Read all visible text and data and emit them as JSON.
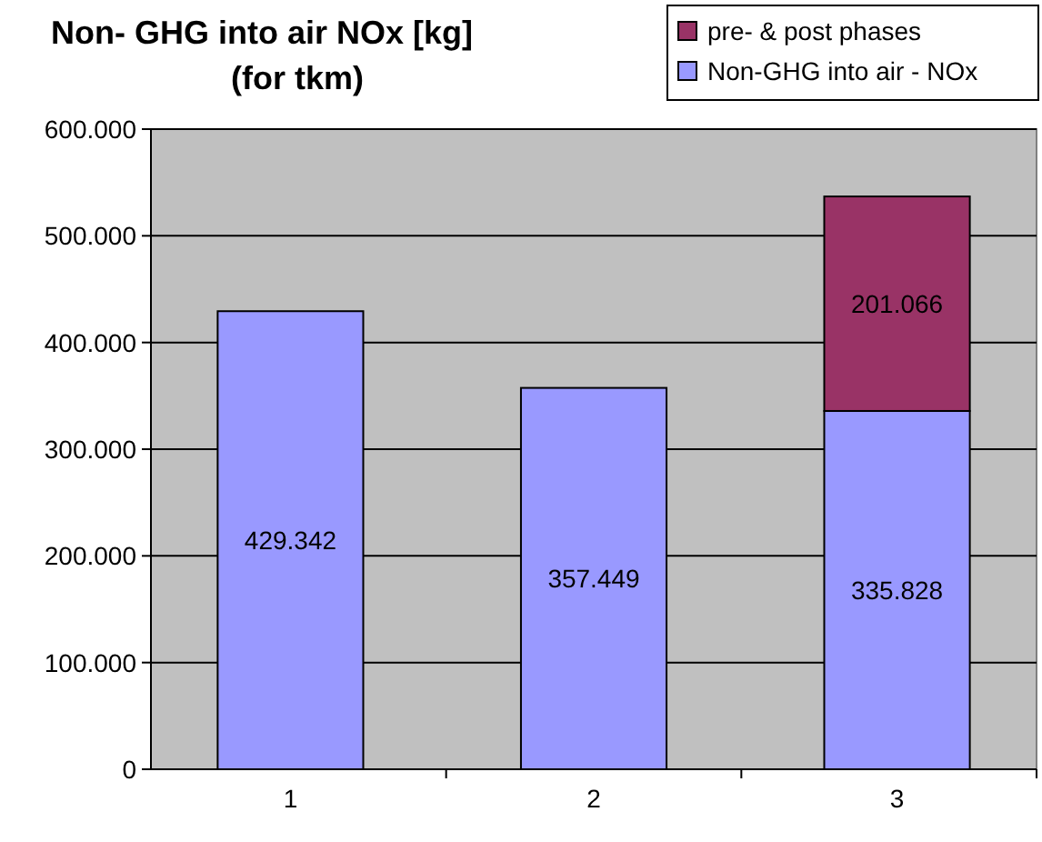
{
  "chart_data": {
    "type": "bar",
    "title": "Non- GHG into air NOx [kg]\n(for tkm)",
    "categories": [
      "1",
      "2",
      "3"
    ],
    "stacked": true,
    "series": [
      {
        "name": "Non-GHG into air - NOx",
        "color": "#9999ff",
        "values": [
          429342,
          357449,
          335828
        ],
        "value_labels": [
          "429.342",
          "357.449",
          "335.828"
        ]
      },
      {
        "name": "pre- & post phases",
        "color": "#993366",
        "values": [
          null,
          null,
          201066
        ],
        "value_labels": [
          null,
          null,
          "201.066"
        ]
      }
    ],
    "ylim": [
      0,
      600000
    ],
    "yticks": [
      {
        "value": 0,
        "label": "0"
      },
      {
        "value": 100000,
        "label": "100.000"
      },
      {
        "value": 200000,
        "label": "200.000"
      },
      {
        "value": 300000,
        "label": "300.000"
      },
      {
        "value": 400000,
        "label": "400.000"
      },
      {
        "value": 500000,
        "label": "500.000"
      },
      {
        "value": 600000,
        "label": "600.000"
      }
    ],
    "grid": "y",
    "legend": "top right"
  }
}
